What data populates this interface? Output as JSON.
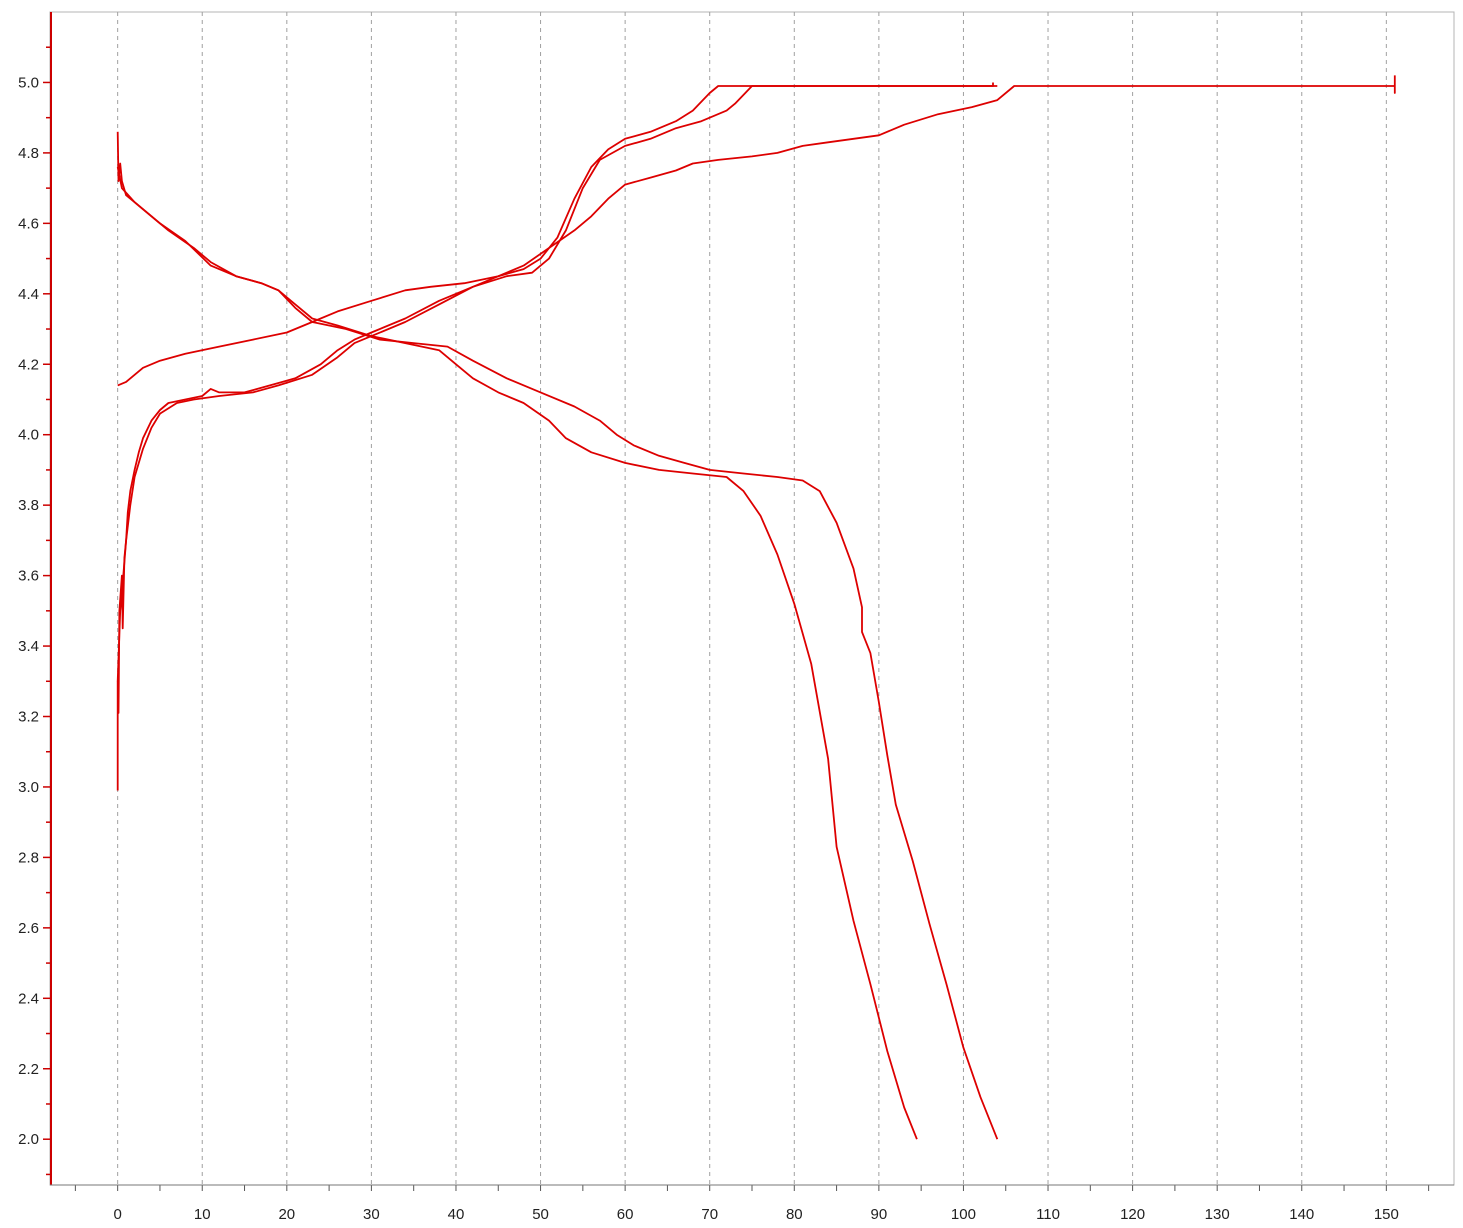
{
  "colors": {
    "series": "#dd0000",
    "axis": "#cc0000",
    "grid": "#a0a0a0",
    "frame": "#b4b4b4",
    "text": "#222222"
  },
  "chart_data": {
    "type": "line",
    "title": "",
    "xlabel": "",
    "ylabel": "",
    "xlim": [
      -8,
      158
    ],
    "ylim": [
      1.87,
      5.2
    ],
    "grid": "vertical dashed",
    "legend": "none",
    "x_ticks": [
      "0",
      "10",
      "20",
      "30",
      "40",
      "50",
      "60",
      "70",
      "80",
      "90",
      "100",
      "110",
      "120",
      "130",
      "140",
      "150"
    ],
    "y_ticks": [
      "2.0",
      "2.2",
      "2.4",
      "2.6",
      "2.8",
      "3.0",
      "3.2",
      "3.4",
      "3.6",
      "3.8",
      "4.0",
      "4.2",
      "4.4",
      "4.6",
      "4.8",
      "5.0"
    ],
    "series": [
      {
        "points": [
          [
            0,
            2.99
          ],
          [
            0,
            3.3
          ],
          [
            0.1,
            3.21
          ],
          [
            0.2,
            3.5
          ],
          [
            0.5,
            3.6
          ],
          [
            0.6,
            3.45
          ],
          [
            0.8,
            3.65
          ],
          [
            1,
            3.7
          ],
          [
            1.2,
            3.78
          ],
          [
            1.5,
            3.84
          ],
          [
            2,
            3.9
          ],
          [
            2.5,
            3.95
          ],
          [
            3,
            3.99
          ],
          [
            4,
            4.04
          ],
          [
            5,
            4.07
          ],
          [
            6,
            4.09
          ],
          [
            8,
            4.1
          ],
          [
            10,
            4.11
          ],
          [
            11,
            4.13
          ],
          [
            12,
            4.12
          ],
          [
            15,
            4.12
          ],
          [
            18,
            4.14
          ],
          [
            21,
            4.16
          ],
          [
            24,
            4.2
          ],
          [
            26,
            4.24
          ],
          [
            28,
            4.27
          ],
          [
            30,
            4.29
          ],
          [
            34,
            4.33
          ],
          [
            38,
            4.38
          ],
          [
            42,
            4.42
          ],
          [
            45,
            4.45
          ],
          [
            48,
            4.47
          ],
          [
            50,
            4.5
          ],
          [
            52,
            4.56
          ],
          [
            54,
            4.67
          ],
          [
            56,
            4.76
          ],
          [
            58,
            4.81
          ],
          [
            60,
            4.84
          ],
          [
            63,
            4.86
          ],
          [
            66,
            4.89
          ],
          [
            68,
            4.92
          ],
          [
            70,
            4.97
          ],
          [
            71,
            4.99
          ],
          [
            103.5,
            4.99
          ],
          [
            103.5,
            5.0
          ]
        ]
      },
      {
        "points": [
          [
            0,
            3.3
          ],
          [
            0.3,
            3.5
          ],
          [
            0.5,
            3.55
          ],
          [
            1,
            3.7
          ],
          [
            1.5,
            3.8
          ],
          [
            2,
            3.88
          ],
          [
            3,
            3.96
          ],
          [
            4,
            4.02
          ],
          [
            5,
            4.06
          ],
          [
            7,
            4.09
          ],
          [
            9,
            4.1
          ],
          [
            12,
            4.11
          ],
          [
            16,
            4.12
          ],
          [
            19,
            4.14
          ],
          [
            23,
            4.17
          ],
          [
            26,
            4.22
          ],
          [
            28,
            4.26
          ],
          [
            30,
            4.28
          ],
          [
            34,
            4.32
          ],
          [
            38,
            4.37
          ],
          [
            42,
            4.42
          ],
          [
            46,
            4.45
          ],
          [
            49,
            4.46
          ],
          [
            51,
            4.5
          ],
          [
            53,
            4.58
          ],
          [
            55,
            4.7
          ],
          [
            57,
            4.78
          ],
          [
            60,
            4.82
          ],
          [
            63,
            4.84
          ],
          [
            66,
            4.87
          ],
          [
            69,
            4.89
          ],
          [
            72,
            4.92
          ],
          [
            73,
            4.94
          ],
          [
            75,
            4.99
          ],
          [
            104,
            4.99
          ]
        ]
      },
      {
        "points": [
          [
            0,
            4.14
          ],
          [
            1,
            4.15
          ],
          [
            3,
            4.19
          ],
          [
            5,
            4.21
          ],
          [
            8,
            4.23
          ],
          [
            12,
            4.25
          ],
          [
            16,
            4.27
          ],
          [
            20,
            4.29
          ],
          [
            23,
            4.32
          ],
          [
            26,
            4.35
          ],
          [
            30,
            4.38
          ],
          [
            34,
            4.41
          ],
          [
            37,
            4.42
          ],
          [
            41,
            4.43
          ],
          [
            45,
            4.45
          ],
          [
            48,
            4.48
          ],
          [
            51,
            4.53
          ],
          [
            54,
            4.58
          ],
          [
            56,
            4.62
          ],
          [
            58,
            4.67
          ],
          [
            60,
            4.71
          ],
          [
            63,
            4.73
          ],
          [
            66,
            4.75
          ],
          [
            68,
            4.77
          ],
          [
            71,
            4.78
          ],
          [
            75,
            4.79
          ],
          [
            78,
            4.8
          ],
          [
            81,
            4.82
          ],
          [
            84,
            4.83
          ],
          [
            87,
            4.84
          ],
          [
            90,
            4.85
          ],
          [
            93,
            4.88
          ],
          [
            97,
            4.91
          ],
          [
            101,
            4.93
          ],
          [
            104,
            4.95
          ],
          [
            106,
            4.99
          ],
          [
            151,
            4.99
          ],
          [
            151,
            4.97
          ],
          [
            151,
            5.02
          ]
        ]
      },
      {
        "points": [
          [
            0,
            4.86
          ],
          [
            0.1,
            4.72
          ],
          [
            0.3,
            4.77
          ],
          [
            0.5,
            4.72
          ],
          [
            1,
            4.68
          ],
          [
            2,
            4.66
          ],
          [
            4,
            4.62
          ],
          [
            6,
            4.58
          ],
          [
            9,
            4.53
          ],
          [
            11,
            4.49
          ],
          [
            14,
            4.45
          ],
          [
            17,
            4.43
          ],
          [
            19,
            4.41
          ],
          [
            21,
            4.37
          ],
          [
            23,
            4.33
          ],
          [
            26,
            4.31
          ],
          [
            30,
            4.28
          ],
          [
            34,
            4.26
          ],
          [
            38,
            4.24
          ],
          [
            40,
            4.2
          ],
          [
            42,
            4.16
          ],
          [
            45,
            4.12
          ],
          [
            48,
            4.09
          ],
          [
            51,
            4.04
          ],
          [
            53,
            3.99
          ],
          [
            56,
            3.95
          ],
          [
            60,
            3.92
          ],
          [
            64,
            3.9
          ],
          [
            68,
            3.89
          ],
          [
            72,
            3.88
          ],
          [
            74,
            3.84
          ],
          [
            76,
            3.77
          ],
          [
            78,
            3.66
          ],
          [
            80,
            3.52
          ],
          [
            82,
            3.35
          ],
          [
            84,
            3.08
          ],
          [
            85,
            2.83
          ],
          [
            87,
            2.62
          ],
          [
            89,
            2.44
          ],
          [
            91,
            2.25
          ],
          [
            93,
            2.09
          ],
          [
            94.5,
            2.0
          ]
        ]
      },
      {
        "points": [
          [
            0,
            4.76
          ],
          [
            0.5,
            4.7
          ],
          [
            2,
            4.66
          ],
          [
            5,
            4.6
          ],
          [
            8,
            4.55
          ],
          [
            11,
            4.48
          ],
          [
            14,
            4.45
          ],
          [
            17,
            4.43
          ],
          [
            19,
            4.41
          ],
          [
            21,
            4.36
          ],
          [
            23,
            4.32
          ],
          [
            27,
            4.3
          ],
          [
            31,
            4.27
          ],
          [
            35,
            4.26
          ],
          [
            39,
            4.25
          ],
          [
            42,
            4.21
          ],
          [
            46,
            4.16
          ],
          [
            50,
            4.12
          ],
          [
            54,
            4.08
          ],
          [
            57,
            4.04
          ],
          [
            59,
            4.0
          ],
          [
            61,
            3.97
          ],
          [
            64,
            3.94
          ],
          [
            67,
            3.92
          ],
          [
            70,
            3.9
          ],
          [
            74,
            3.89
          ],
          [
            78,
            3.88
          ],
          [
            81,
            3.87
          ],
          [
            83,
            3.84
          ],
          [
            85,
            3.75
          ],
          [
            87,
            3.62
          ],
          [
            88,
            3.51
          ],
          [
            88,
            3.44
          ],
          [
            89,
            3.38
          ],
          [
            90,
            3.24
          ],
          [
            91,
            3.09
          ],
          [
            92,
            2.95
          ],
          [
            94,
            2.79
          ],
          [
            96,
            2.61
          ],
          [
            98,
            2.44
          ],
          [
            100,
            2.26
          ],
          [
            102,
            2.12
          ],
          [
            104,
            2.0
          ]
        ]
      }
    ]
  }
}
